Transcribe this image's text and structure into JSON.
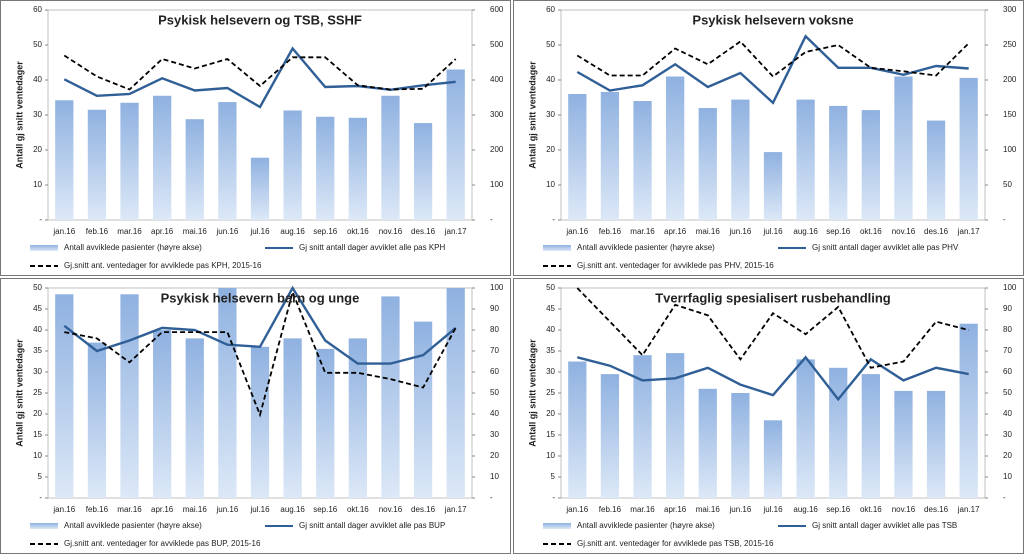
{
  "chart_data": [
    {
      "type": "bar-line",
      "title": "Psykisk helsevern og TSB, SSHF",
      "y_label": "Antall gj snitt ventedager",
      "categories": [
        "jan.16",
        "feb.16",
        "mar.16",
        "apr.16",
        "mai.16",
        "jun.16",
        "jul.16",
        "aug.16",
        "sep.16",
        "okt.16",
        "nov.16",
        "des.16",
        "jan.17"
      ],
      "ylim": [
        0,
        60
      ],
      "yticks": [
        {
          "value": 0,
          "label": "-"
        },
        10,
        20,
        30,
        40,
        50,
        60
      ],
      "y2lim": [
        0,
        600
      ],
      "y2ticks": [
        {
          "value": 0,
          "label": "-"
        },
        100,
        200,
        300,
        400,
        500,
        600
      ],
      "series": [
        {
          "name": "Antall avviklede pasienter (høyre akse)",
          "kind": "bar",
          "axis": "y2",
          "color": "#a9c4e8",
          "values": [
            342,
            315,
            335,
            355,
            288,
            337,
            178,
            313,
            295,
            292,
            355,
            277,
            430
          ]
        },
        {
          "name": "Gj snitt antall dager avviklet alle pas KPH",
          "kind": "line",
          "dash": false,
          "color": "#2f5f96",
          "values": [
            40.2,
            35.5,
            36,
            40.5,
            37,
            37.7,
            32.3,
            49,
            38,
            38.3,
            37.2,
            38.5,
            39.5
          ]
        },
        {
          "name": "Gj.snitt ant. ventedager for avviklede pas KPH, 2015-16",
          "kind": "line",
          "dash": true,
          "color": "#000000",
          "values": [
            47,
            41,
            37.3,
            46,
            43.3,
            46,
            38.3,
            46.5,
            46.5,
            38.5,
            37.3,
            37.5,
            46
          ]
        }
      ]
    },
    {
      "type": "bar-line",
      "title": "Psykisk helsevern voksne",
      "y_label": "Antall gj snitt ventedager",
      "categories": [
        "jan.16",
        "feb.16",
        "mar.16",
        "apr.16",
        "mai.16",
        "jun.16",
        "jul.16",
        "aug.16",
        "sep.16",
        "okt.16",
        "nov.16",
        "des.16",
        "jan.17"
      ],
      "ylim": [
        0,
        60
      ],
      "yticks": [
        {
          "value": 0,
          "label": "-"
        },
        10,
        20,
        30,
        40,
        50,
        60
      ],
      "y2lim": [
        0,
        300
      ],
      "y2ticks": [
        {
          "value": 0,
          "label": "-"
        },
        50,
        100,
        150,
        200,
        250,
        300
      ],
      "series": [
        {
          "name": "Antall avviklede pasienter (høyre akse)",
          "kind": "bar",
          "axis": "y2",
          "color": "#a9c4e8",
          "values": [
            180,
            183,
            170,
            205,
            160,
            172,
            97,
            172,
            163,
            157,
            205,
            142,
            203
          ]
        },
        {
          "name": "Gj snitt antall dager avviklet alle pas PHV",
          "kind": "line",
          "dash": false,
          "color": "#2f5f96",
          "values": [
            42.3,
            37,
            38.5,
            44.5,
            38,
            42,
            33.5,
            52.5,
            43.5,
            43.5,
            41.5,
            44,
            43.3
          ]
        },
        {
          "name": "Gj.snitt ant. ventedager for avviklede pas PHV, 2015-16",
          "kind": "line",
          "dash": true,
          "color": "#000000",
          "values": [
            47,
            41.3,
            41.3,
            49,
            44.5,
            51,
            41,
            48,
            50,
            43.5,
            42.5,
            41.3,
            50.5
          ]
        }
      ]
    },
    {
      "type": "bar-line",
      "title": "Psykisk helsevern barn og unge",
      "y_label": "Antall gj snitt ventedager",
      "categories": [
        "jan.16",
        "feb.16",
        "mar.16",
        "apr.16",
        "mai.16",
        "jun.16",
        "jul.16",
        "aug.16",
        "sep.16",
        "okt.16",
        "nov.16",
        "des.16",
        "jan.17"
      ],
      "ylim": [
        0,
        50
      ],
      "yticks": [
        {
          "value": 0,
          "label": "-"
        },
        5,
        10,
        15,
        20,
        25,
        30,
        35,
        40,
        45,
        50
      ],
      "y2lim": [
        0,
        100
      ],
      "y2ticks": [
        {
          "value": 0,
          "label": "-"
        },
        10,
        20,
        30,
        40,
        50,
        60,
        70,
        80,
        90,
        100
      ],
      "series": [
        {
          "name": "Antall avviklede pasienter (høyre akse)",
          "kind": "bar",
          "axis": "y2",
          "color": "#a9c4e8",
          "values": [
            97,
            74,
            97,
            80,
            76,
            100,
            72,
            76,
            71,
            76,
            96,
            84,
            100
          ]
        },
        {
          "name": "Gj snitt antall dager avviklet alle pas BUP",
          "kind": "line",
          "dash": false,
          "color": "#2f5f96",
          "values": [
            41,
            35,
            37.5,
            40.5,
            40,
            36.5,
            36,
            50,
            37.5,
            32,
            32,
            34,
            40.5
          ]
        },
        {
          "name": "Gj.snitt ant. ventedager for avviklede pas BUP, 2015-16",
          "kind": "line",
          "dash": true,
          "color": "#000000",
          "values": [
            39.5,
            38,
            32.3,
            39.5,
            39.5,
            39.5,
            19.8,
            49,
            29.8,
            29.8,
            28.3,
            26.3,
            40.5
          ]
        }
      ]
    },
    {
      "type": "bar-line",
      "title": "Tverrfaglig spesialisert rusbehandling",
      "y_label": "Antall gj snitt ventedager",
      "categories": [
        "jan.16",
        "feb.16",
        "mar.16",
        "apr.16",
        "mai.16",
        "jun.16",
        "jul.16",
        "aug.16",
        "sep.16",
        "okt.16",
        "nov.16",
        "des.16",
        "jan.17"
      ],
      "ylim": [
        0,
        50
      ],
      "yticks": [
        {
          "value": 0,
          "label": "-"
        },
        5,
        10,
        15,
        20,
        25,
        30,
        35,
        40,
        45,
        50
      ],
      "y2lim": [
        0,
        100
      ],
      "y2ticks": [
        {
          "value": 0,
          "label": "-"
        },
        10,
        20,
        30,
        40,
        50,
        60,
        70,
        80,
        90,
        100
      ],
      "series": [
        {
          "name": "Antall avviklede pasienter (høyre akse)",
          "kind": "bar",
          "axis": "y2",
          "color": "#a9c4e8",
          "values": [
            65,
            59,
            68,
            69,
            52,
            50,
            37,
            66,
            62,
            59,
            51,
            51,
            83
          ]
        },
        {
          "name": "Gj snitt antall dager avviklet alle pas TSB",
          "kind": "line",
          "dash": false,
          "color": "#2f5f96",
          "values": [
            33.5,
            31.5,
            28,
            28.5,
            31,
            27,
            24.5,
            33.5,
            23.5,
            33,
            28,
            31,
            29.5
          ]
        },
        {
          "name": "Gj.snitt ant. ventedager for avviklede pas TSB, 2015-16",
          "kind": "line",
          "dash": true,
          "color": "#000000",
          "values": [
            50,
            42,
            34,
            46,
            43.5,
            33,
            44,
            39,
            45.5,
            31,
            32.5,
            42,
            40
          ]
        }
      ]
    }
  ]
}
